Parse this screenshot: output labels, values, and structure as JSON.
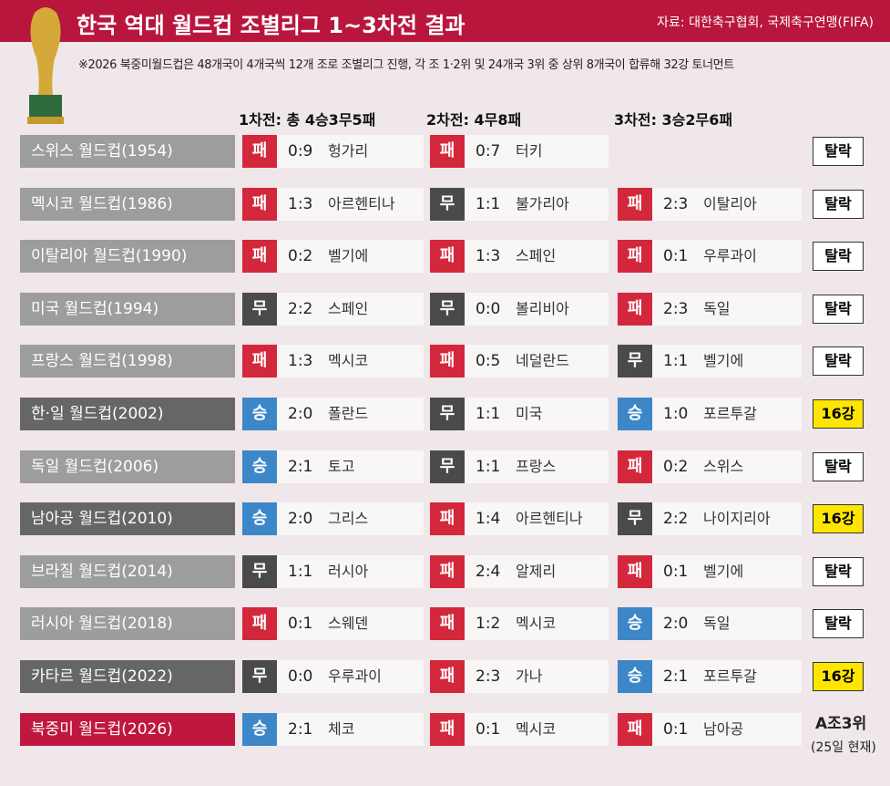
{
  "header": {
    "title": "한국 역대 월드컵 조별리그 1~3차전 결과",
    "source": "자료: 대한축구협회, 국제축구연맹(FIFA)",
    "note": "※2026 북중미월드컵은 48개국이 4개국씩 12개 조로 조별리그 진행, 각 조 1·2위 및 24개국 3위 중 상위 8개국이 합류해 32강 토너먼트"
  },
  "columns": [
    "1차전: 총 4승3무5패",
    "2차전: 4무8패",
    "3차전: 3승2무6패"
  ],
  "result_colors": {
    "패": "#d3283c",
    "무": "#4a4a4a",
    "승": "#3d87c9"
  },
  "rows": [
    {
      "tournament": "스위스 월드컵(1954)",
      "color": "#9d9d9d",
      "matches": [
        {
          "result": "패",
          "score": "0:9",
          "opponent": "헝가리"
        },
        {
          "result": "패",
          "score": "0:7",
          "opponent": "터키"
        }
      ],
      "outcome": "탈락"
    },
    {
      "tournament": "멕시코 월드컵(1986)",
      "color": "#9d9d9d",
      "matches": [
        {
          "result": "패",
          "score": "1:3",
          "opponent": "아르헨티나"
        },
        {
          "result": "무",
          "score": "1:1",
          "opponent": "불가리아"
        },
        {
          "result": "패",
          "score": "2:3",
          "opponent": "이탈리아"
        }
      ],
      "outcome": "탈락"
    },
    {
      "tournament": "이탈리아 월드컵(1990)",
      "color": "#9d9d9d",
      "matches": [
        {
          "result": "패",
          "score": "0:2",
          "opponent": "벨기에"
        },
        {
          "result": "패",
          "score": "1:3",
          "opponent": "스페인"
        },
        {
          "result": "패",
          "score": "0:1",
          "opponent": "우루과이"
        }
      ],
      "outcome": "탈락"
    },
    {
      "tournament": "미국 월드컵(1994)",
      "color": "#9d9d9d",
      "matches": [
        {
          "result": "무",
          "score": "2:2",
          "opponent": "스페인"
        },
        {
          "result": "무",
          "score": "0:0",
          "opponent": "볼리비아"
        },
        {
          "result": "패",
          "score": "2:3",
          "opponent": "독일"
        }
      ],
      "outcome": "탈락"
    },
    {
      "tournament": "프랑스 월드컵(1998)",
      "color": "#9d9d9d",
      "matches": [
        {
          "result": "패",
          "score": "1:3",
          "opponent": "멕시코"
        },
        {
          "result": "패",
          "score": "0:5",
          "opponent": "네덜란드"
        },
        {
          "result": "무",
          "score": "1:1",
          "opponent": "벨기에"
        }
      ],
      "outcome": "탈락"
    },
    {
      "tournament": "한·일 월드컵(2002)",
      "color": "#666666",
      "matches": [
        {
          "result": "승",
          "score": "2:0",
          "opponent": "폴란드"
        },
        {
          "result": "무",
          "score": "1:1",
          "opponent": "미국"
        },
        {
          "result": "승",
          "score": "1:0",
          "opponent": "포르투갈"
        }
      ],
      "outcome": "16강"
    },
    {
      "tournament": "독일 월드컵(2006)",
      "color": "#9d9d9d",
      "matches": [
        {
          "result": "승",
          "score": "2:1",
          "opponent": "토고"
        },
        {
          "result": "무",
          "score": "1:1",
          "opponent": "프랑스"
        },
        {
          "result": "패",
          "score": "0:2",
          "opponent": "스위스"
        }
      ],
      "outcome": "탈락"
    },
    {
      "tournament": "남아공 월드컵(2010)",
      "color": "#666666",
      "matches": [
        {
          "result": "승",
          "score": "2:0",
          "opponent": "그리스"
        },
        {
          "result": "패",
          "score": "1:4",
          "opponent": "아르헨티나"
        },
        {
          "result": "무",
          "score": "2:2",
          "opponent": "나이지리아"
        }
      ],
      "outcome": "16강"
    },
    {
      "tournament": "브라질 월드컵(2014)",
      "color": "#9d9d9d",
      "matches": [
        {
          "result": "무",
          "score": "1:1",
          "opponent": "러시아"
        },
        {
          "result": "패",
          "score": "2:4",
          "opponent": "알제리"
        },
        {
          "result": "패",
          "score": "0:1",
          "opponent": "벨기에"
        }
      ],
      "outcome": "탈락"
    },
    {
      "tournament": "러시아 월드컵(2018)",
      "color": "#9d9d9d",
      "matches": [
        {
          "result": "패",
          "score": "0:1",
          "opponent": "스웨덴"
        },
        {
          "result": "패",
          "score": "1:2",
          "opponent": "멕시코"
        },
        {
          "result": "승",
          "score": "2:0",
          "opponent": "독일"
        }
      ],
      "outcome": "탈락"
    },
    {
      "tournament": "카타르 월드컵(2022)",
      "color": "#666666",
      "matches": [
        {
          "result": "무",
          "score": "0:0",
          "opponent": "우루과이"
        },
        {
          "result": "패",
          "score": "2:3",
          "opponent": "가나"
        },
        {
          "result": "승",
          "score": "2:1",
          "opponent": "포르투갈"
        }
      ],
      "outcome": "16강"
    },
    {
      "tournament": "북중미 월드컵(2026)",
      "color": "#c0173f",
      "matches": [
        {
          "result": "승",
          "score": "2:1",
          "opponent": "체코"
        },
        {
          "result": "패",
          "score": "0:1",
          "opponent": "멕시코"
        },
        {
          "result": "패",
          "score": "0:1",
          "opponent": "남아공"
        }
      ],
      "outcome": "A조3위",
      "outcome_note": "(25일 현재)"
    }
  ]
}
